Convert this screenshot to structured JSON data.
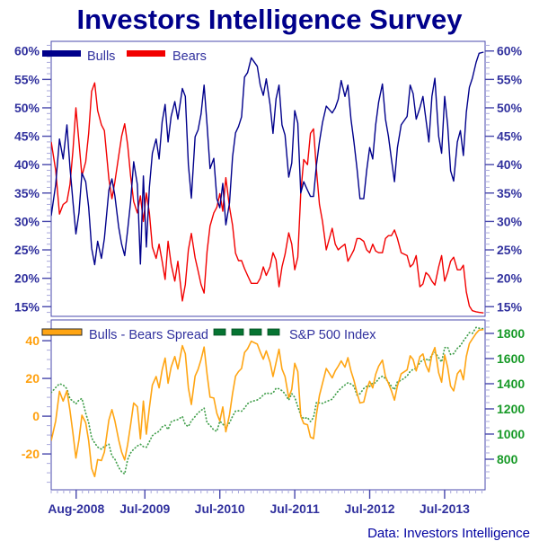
{
  "title": "Investors Intelligence Survey",
  "caption": "Data: Investors Intelligence",
  "colors": {
    "title": "#00008B",
    "tick_text": "#31319E",
    "frame": "#4848AC",
    "minor_tick": "#A9A9DC",
    "bulls": "#00008B",
    "bears": "#F20000",
    "spread": "#FFA513",
    "spread_axis_text": "#FFA00D",
    "sp500_line": "#44A04E",
    "sp500_swatch": "#067432",
    "sp500_axis_text": "#189A28"
  },
  "chart_data": {
    "type": "line",
    "title": "Investors Intelligence Survey",
    "source_note": "Data: Investors Intelligence",
    "x_axis": {
      "range": [
        2008.25,
        2014.04
      ],
      "tick_values": [
        2008.583,
        2009.5,
        2010.5,
        2011.5,
        2012.5,
        2013.5
      ],
      "tick_labels": [
        "Aug-2008",
        "Jul-2009",
        "Jul-2010",
        "Jul-2011",
        "Jul-2012",
        "Jul-2013"
      ],
      "minor_tick_step_years": 0.0833
    },
    "panels": [
      {
        "name": "sentiment",
        "legend": [
          {
            "label": "Bulls",
            "color": "#00008B",
            "style": "solid"
          },
          {
            "label": "Bears",
            "color": "#F20000",
            "style": "solid"
          }
        ],
        "y_axis": {
          "range": [
            13.3,
            61.7
          ],
          "tick_values": [
            15,
            20,
            25,
            30,
            35,
            40,
            45,
            50,
            55,
            60
          ],
          "tick_labels": [
            "15%",
            "20%",
            "25%",
            "30%",
            "35%",
            "40%",
            "45%",
            "50%",
            "55%",
            "60%"
          ],
          "minor_step": 1,
          "sides": "both"
        }
      },
      {
        "name": "spread-and-sp500",
        "legend": [
          {
            "label": "Bulls - Bears Spread",
            "color": "#FFA513",
            "style": "solid"
          },
          {
            "label": "S&P 500 Index",
            "color": "#067432",
            "style": "dashed"
          }
        ],
        "y_axis_left": {
          "range": [
            -39,
            51
          ],
          "tick_values": [
            -20,
            0,
            20,
            40
          ],
          "tick_labels": [
            "-20",
            "0",
            "20",
            "40"
          ],
          "minor_step": 5
        },
        "y_axis_right": {
          "range": [
            557,
            1907
          ],
          "tick_values": [
            800,
            1000,
            1200,
            1400,
            1600,
            1800
          ],
          "tick_labels": [
            "800",
            "1000",
            "1200",
            "1400",
            "1600",
            "1800"
          ],
          "minor_step": 50
        },
        "note": "spread series = bulls - bears"
      }
    ],
    "series_names": [
      "Bulls",
      "Bears",
      "Bulls - Bears Spread",
      "S&P 500 Index"
    ],
    "points_format": [
      "year",
      "bulls_pct",
      "bears_pct",
      "sp500"
    ],
    "points": [
      [
        2008.25,
        31.0,
        44.0,
        1330
      ],
      [
        2008.31,
        36.5,
        39.0,
        1370
      ],
      [
        2008.36,
        44.5,
        31.3,
        1400
      ],
      [
        2008.41,
        41.0,
        33.0,
        1390
      ],
      [
        2008.46,
        47.0,
        33.5,
        1360
      ],
      [
        2008.5,
        39.5,
        36.5,
        1280
      ],
      [
        2008.54,
        33.5,
        42.5,
        1262
      ],
      [
        2008.58,
        27.8,
        50.0,
        1240
      ],
      [
        2008.62,
        31.5,
        44.0,
        1270
      ],
      [
        2008.66,
        38.5,
        38.0,
        1283
      ],
      [
        2008.71,
        37.0,
        40.5,
        1166
      ],
      [
        2008.75,
        32.5,
        45.5,
        1090
      ],
      [
        2008.79,
        25.3,
        52.9,
        969
      ],
      [
        2008.83,
        22.4,
        54.4,
        930
      ],
      [
        2008.87,
        26.5,
        49.5,
        896
      ],
      [
        2008.92,
        23.5,
        47.0,
        880
      ],
      [
        2008.96,
        27.0,
        46.0,
        903
      ],
      [
        2009.02,
        35.5,
        37.5,
        920
      ],
      [
        2009.06,
        37.5,
        34.0,
        826
      ],
      [
        2009.1,
        34.5,
        37.0,
        800
      ],
      [
        2009.15,
        29.0,
        41.5,
        735
      ],
      [
        2009.19,
        26.0,
        45.0,
        700
      ],
      [
        2009.23,
        24.0,
        47.2,
        683
      ],
      [
        2009.27,
        28.5,
        43.5,
        798
      ],
      [
        2009.31,
        33.5,
        38.0,
        850
      ],
      [
        2009.35,
        40.5,
        33.5,
        880
      ],
      [
        2009.4,
        36.5,
        31.5,
        905
      ],
      [
        2009.44,
        22.5,
        34.5,
        919
      ],
      [
        2009.48,
        38.0,
        30.0,
        900
      ],
      [
        2009.52,
        25.5,
        35.0,
        895
      ],
      [
        2009.56,
        36.0,
        31.5,
        940
      ],
      [
        2009.6,
        42.0,
        25.5,
        987
      ],
      [
        2009.65,
        44.5,
        23.5,
        1010
      ],
      [
        2009.69,
        41.0,
        26.0,
        1021
      ],
      [
        2009.73,
        47.5,
        23.0,
        1057
      ],
      [
        2009.77,
        50.6,
        19.8,
        1070
      ],
      [
        2009.81,
        44.0,
        26.5,
        1036
      ],
      [
        2009.85,
        48.5,
        22.5,
        1096
      ],
      [
        2009.9,
        51.1,
        19.5,
        1110
      ],
      [
        2009.94,
        48.0,
        23.0,
        1115
      ],
      [
        2010.0,
        53.4,
        16.0,
        1140
      ],
      [
        2010.04,
        52.0,
        18.9,
        1074
      ],
      [
        2010.08,
        40.0,
        25.0,
        1060
      ],
      [
        2010.12,
        34.1,
        27.9,
        1104
      ],
      [
        2010.17,
        44.9,
        23.6,
        1140
      ],
      [
        2010.21,
        46.1,
        21.3,
        1169
      ],
      [
        2010.25,
        48.9,
        18.9,
        1187
      ],
      [
        2010.29,
        54.0,
        17.4,
        1207
      ],
      [
        2010.33,
        47.0,
        24.7,
        1089
      ],
      [
        2010.37,
        39.3,
        29.2,
        1070
      ],
      [
        2010.42,
        41.1,
        31.5,
        1031
      ],
      [
        2010.46,
        34.0,
        32.5,
        1022
      ],
      [
        2010.5,
        32.4,
        34.9,
        1102
      ],
      [
        2010.54,
        36.7,
        31.8,
        1080
      ],
      [
        2010.58,
        29.4,
        37.7,
        1049
      ],
      [
        2010.63,
        33.3,
        32.5,
        1090
      ],
      [
        2010.67,
        41.4,
        29.3,
        1141
      ],
      [
        2010.71,
        45.6,
        24.4,
        1183
      ],
      [
        2010.75,
        46.7,
        23.1,
        1185
      ],
      [
        2010.79,
        48.4,
        23.1,
        1181
      ],
      [
        2010.83,
        55.4,
        21.7,
        1206
      ],
      [
        2010.87,
        56.2,
        20.5,
        1241
      ],
      [
        2010.92,
        58.8,
        19.1,
        1258
      ],
      [
        2011.0,
        57.3,
        19.1,
        1271
      ],
      [
        2011.04,
        54.0,
        20.0,
        1286
      ],
      [
        2011.08,
        52.2,
        22.0,
        1310
      ],
      [
        2011.12,
        55.1,
        20.5,
        1327
      ],
      [
        2011.17,
        50.6,
        22.0,
        1320
      ],
      [
        2011.21,
        45.5,
        24.5,
        1326
      ],
      [
        2011.25,
        51.6,
        23.2,
        1364
      ],
      [
        2011.29,
        54.0,
        18.5,
        1360
      ],
      [
        2011.33,
        47.0,
        22.0,
        1345
      ],
      [
        2011.37,
        45.2,
        24.2,
        1320
      ],
      [
        2011.42,
        37.8,
        28.0,
        1270
      ],
      [
        2011.46,
        40.3,
        26.0,
        1321
      ],
      [
        2011.5,
        49.5,
        21.5,
        1292
      ],
      [
        2011.54,
        47.3,
        23.7,
        1219
      ],
      [
        2011.58,
        35.0,
        35.0,
        1150
      ],
      [
        2011.62,
        37.0,
        40.9,
        1123
      ],
      [
        2011.67,
        35.5,
        40.0,
        1131
      ],
      [
        2011.71,
        34.4,
        45.5,
        1099
      ],
      [
        2011.75,
        34.4,
        46.3,
        1131
      ],
      [
        2011.79,
        40.0,
        39.0,
        1253
      ],
      [
        2011.83,
        44.0,
        33.0,
        1247
      ],
      [
        2011.87,
        47.4,
        30.0,
        1244
      ],
      [
        2011.92,
        50.3,
        25.0,
        1258
      ],
      [
        2012.0,
        49.1,
        28.8,
        1277
      ],
      [
        2012.04,
        50.0,
        26.0,
        1312
      ],
      [
        2012.08,
        51.5,
        25.0,
        1342
      ],
      [
        2012.12,
        54.8,
        25.5,
        1366
      ],
      [
        2012.17,
        52.0,
        26.0,
        1390
      ],
      [
        2012.21,
        54.0,
        23.0,
        1408
      ],
      [
        2012.25,
        48.0,
        24.0,
        1398
      ],
      [
        2012.29,
        44.0,
        25.0,
        1380
      ],
      [
        2012.33,
        39.3,
        27.0,
        1310
      ],
      [
        2012.37,
        34.0,
        27.0,
        1320
      ],
      [
        2012.42,
        34.0,
        26.5,
        1362
      ],
      [
        2012.46,
        39.0,
        25.0,
        1379
      ],
      [
        2012.5,
        43.0,
        24.5,
        1379
      ],
      [
        2012.54,
        41.0,
        26.0,
        1407
      ],
      [
        2012.58,
        47.0,
        24.8,
        1407
      ],
      [
        2012.62,
        51.0,
        24.5,
        1441
      ],
      [
        2012.67,
        54.2,
        24.5,
        1460
      ],
      [
        2012.71,
        48.0,
        27.0,
        1441
      ],
      [
        2012.75,
        45.0,
        27.5,
        1412
      ],
      [
        2012.79,
        41.0,
        27.5,
        1380
      ],
      [
        2012.83,
        37.0,
        28.5,
        1353
      ],
      [
        2012.87,
        43.0,
        27.0,
        1416
      ],
      [
        2012.92,
        47.0,
        24.5,
        1426
      ],
      [
        2013.0,
        48.5,
        24.0,
        1462
      ],
      [
        2013.04,
        54.0,
        22.0,
        1498
      ],
      [
        2013.08,
        52.5,
        22.5,
        1515
      ],
      [
        2013.12,
        48.0,
        24.0,
        1520
      ],
      [
        2013.17,
        50.0,
        18.5,
        1569
      ],
      [
        2013.21,
        52.0,
        19.0,
        1590
      ],
      [
        2013.25,
        48.0,
        21.0,
        1598
      ],
      [
        2013.29,
        44.0,
        20.5,
        1582
      ],
      [
        2013.33,
        52.0,
        19.5,
        1631
      ],
      [
        2013.37,
        55.2,
        18.8,
        1650
      ],
      [
        2013.42,
        45.0,
        22.0,
        1606
      ],
      [
        2013.46,
        42.0,
        24.0,
        1573
      ],
      [
        2013.5,
        52.0,
        19.5,
        1686
      ],
      [
        2013.54,
        47.0,
        21.0,
        1690
      ],
      [
        2013.58,
        38.9,
        23.0,
        1633
      ],
      [
        2013.62,
        37.1,
        23.7,
        1639
      ],
      [
        2013.67,
        44.0,
        21.5,
        1682
      ],
      [
        2013.71,
        46.0,
        21.5,
        1703
      ],
      [
        2013.75,
        41.6,
        22.3,
        1740
      ],
      [
        2013.79,
        49.2,
        17.6,
        1771
      ],
      [
        2013.83,
        53.6,
        15.1,
        1806
      ],
      [
        2013.87,
        55.2,
        14.3,
        1800
      ],
      [
        2013.92,
        58.0,
        14.1,
        1848
      ],
      [
        2013.96,
        59.6,
        14.0,
        1841
      ],
      [
        2014.02,
        59.8,
        13.9,
        1838
      ]
    ]
  }
}
